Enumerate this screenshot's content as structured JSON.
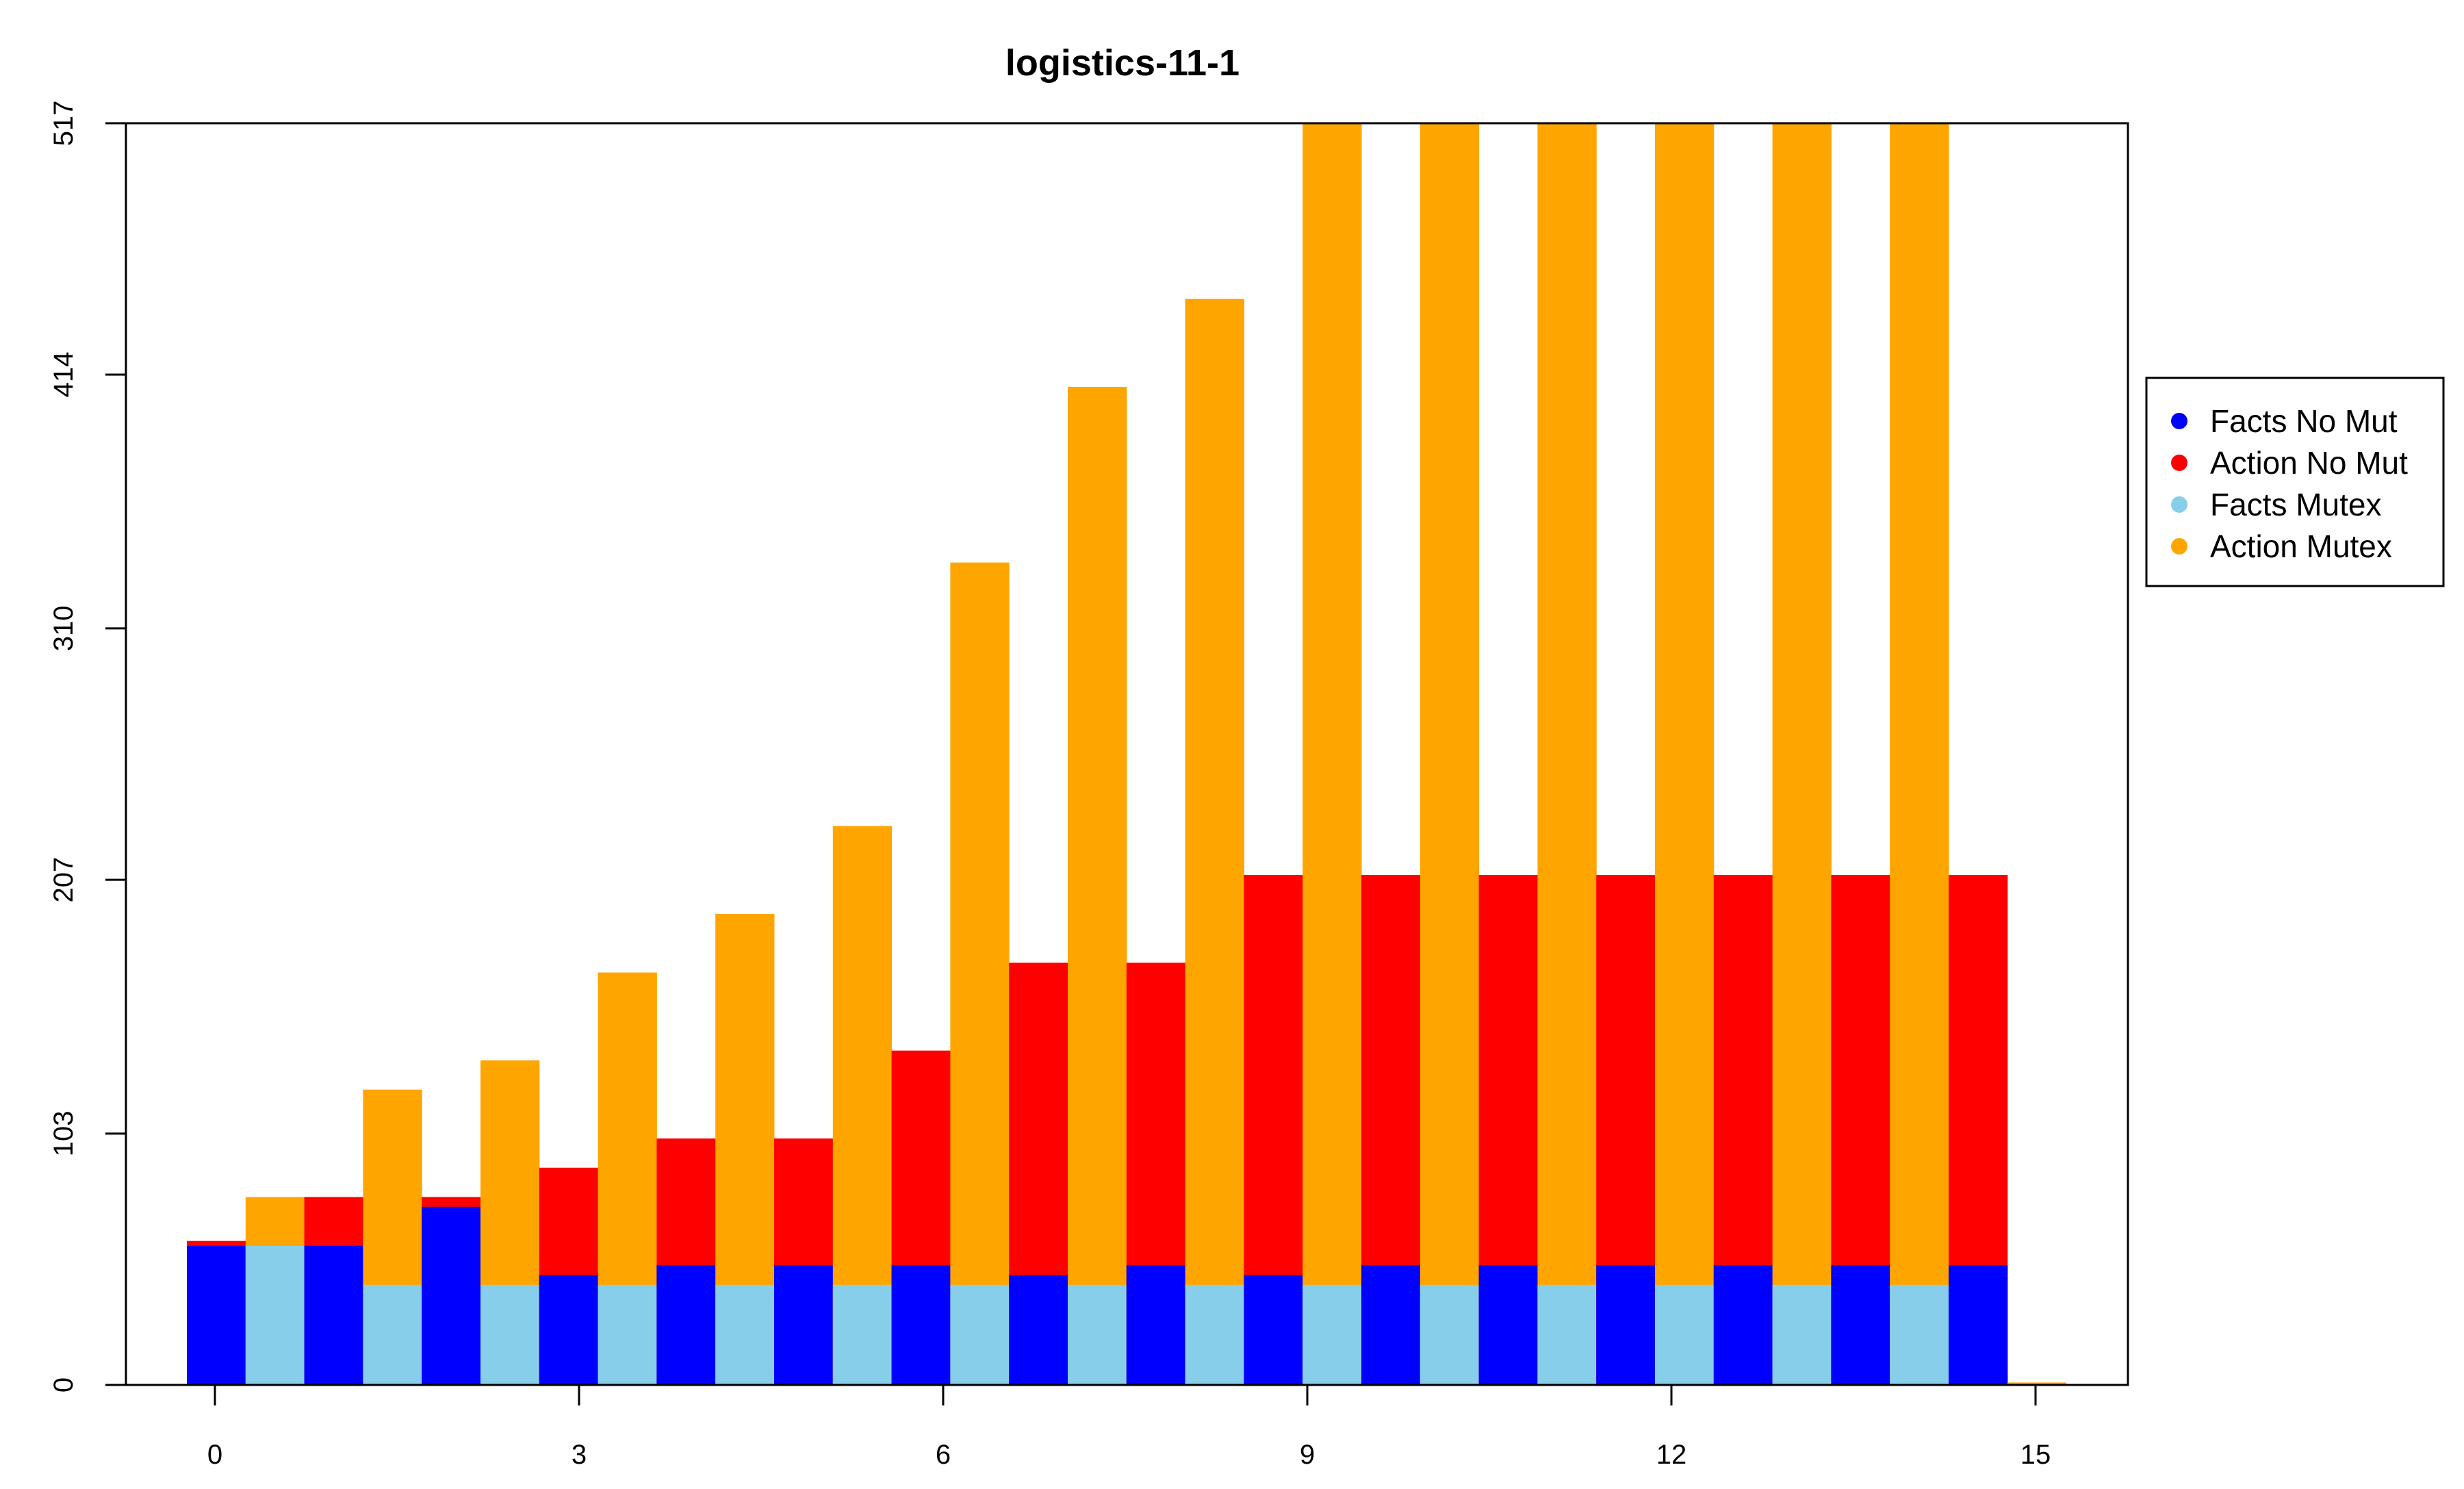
{
  "chart_data": {
    "type": "bar",
    "title": "logistics-11-1",
    "xlabel": "",
    "ylabel": "",
    "ylim": [
      0,
      517
    ],
    "yticks": [
      0,
      103,
      207,
      310,
      414,
      517
    ],
    "xticks": [
      0,
      3,
      6,
      9,
      12,
      15
    ],
    "grid": false,
    "legend_position": "right",
    "series": [
      {
        "name": "Facts No Mut",
        "color": "#0000ff"
      },
      {
        "name": "Action No Mut",
        "color": "#ff0000"
      },
      {
        "name": "Facts Mutex",
        "color": "#87ceeb"
      },
      {
        "name": "Action Mutex",
        "color": "#ffa500"
      }
    ],
    "bars": [
      {
        "x": 0,
        "kind": "no_mutex",
        "facts": 57,
        "action": 59
      },
      {
        "x": 0,
        "kind": "mutex",
        "facts": 57,
        "action": 77
      },
      {
        "x": 1,
        "kind": "no_mutex",
        "facts": 57,
        "action": 77
      },
      {
        "x": 1,
        "kind": "mutex",
        "facts": 41,
        "action": 121
      },
      {
        "x": 2,
        "kind": "no_mutex",
        "facts": 73,
        "action": 77
      },
      {
        "x": 2,
        "kind": "mutex",
        "facts": 41,
        "action": 133
      },
      {
        "x": 3,
        "kind": "no_mutex",
        "facts": 45,
        "action": 89
      },
      {
        "x": 3,
        "kind": "mutex",
        "facts": 41,
        "action": 169
      },
      {
        "x": 4,
        "kind": "no_mutex",
        "facts": 49,
        "action": 101
      },
      {
        "x": 4,
        "kind": "mutex",
        "facts": 41,
        "action": 193
      },
      {
        "x": 5,
        "kind": "no_mutex",
        "facts": 49,
        "action": 101
      },
      {
        "x": 5,
        "kind": "mutex",
        "facts": 41,
        "action": 229
      },
      {
        "x": 6,
        "kind": "no_mutex",
        "facts": 49,
        "action": 137
      },
      {
        "x": 6,
        "kind": "mutex",
        "facts": 41,
        "action": 337
      },
      {
        "x": 7,
        "kind": "no_mutex",
        "facts": 45,
        "action": 173
      },
      {
        "x": 7,
        "kind": "mutex",
        "facts": 41,
        "action": 409
      },
      {
        "x": 8,
        "kind": "no_mutex",
        "facts": 49,
        "action": 173
      },
      {
        "x": 8,
        "kind": "mutex",
        "facts": 41,
        "action": 445
      },
      {
        "x": 9,
        "kind": "no_mutex",
        "facts": 45,
        "action": 209
      },
      {
        "x": 9,
        "kind": "mutex",
        "facts": 41,
        "action": 517
      },
      {
        "x": 10,
        "kind": "no_mutex",
        "facts": 49,
        "action": 209
      },
      {
        "x": 10,
        "kind": "mutex",
        "facts": 41,
        "action": 517
      },
      {
        "x": 11,
        "kind": "no_mutex",
        "facts": 49,
        "action": 209
      },
      {
        "x": 11,
        "kind": "mutex",
        "facts": 41,
        "action": 517
      },
      {
        "x": 12,
        "kind": "no_mutex",
        "facts": 49,
        "action": 209
      },
      {
        "x": 12,
        "kind": "mutex",
        "facts": 41,
        "action": 517
      },
      {
        "x": 13,
        "kind": "no_mutex",
        "facts": 49,
        "action": 209
      },
      {
        "x": 13,
        "kind": "mutex",
        "facts": 41,
        "action": 517
      },
      {
        "x": 14,
        "kind": "no_mutex",
        "facts": 49,
        "action": 209
      },
      {
        "x": 14,
        "kind": "mutex",
        "facts": 41,
        "action": 517
      },
      {
        "x": 15,
        "kind": "no_mutex",
        "facts": 49,
        "action": 209
      },
      {
        "x": 15,
        "kind": "mutex",
        "facts": 0,
        "action": 1
      }
    ]
  }
}
